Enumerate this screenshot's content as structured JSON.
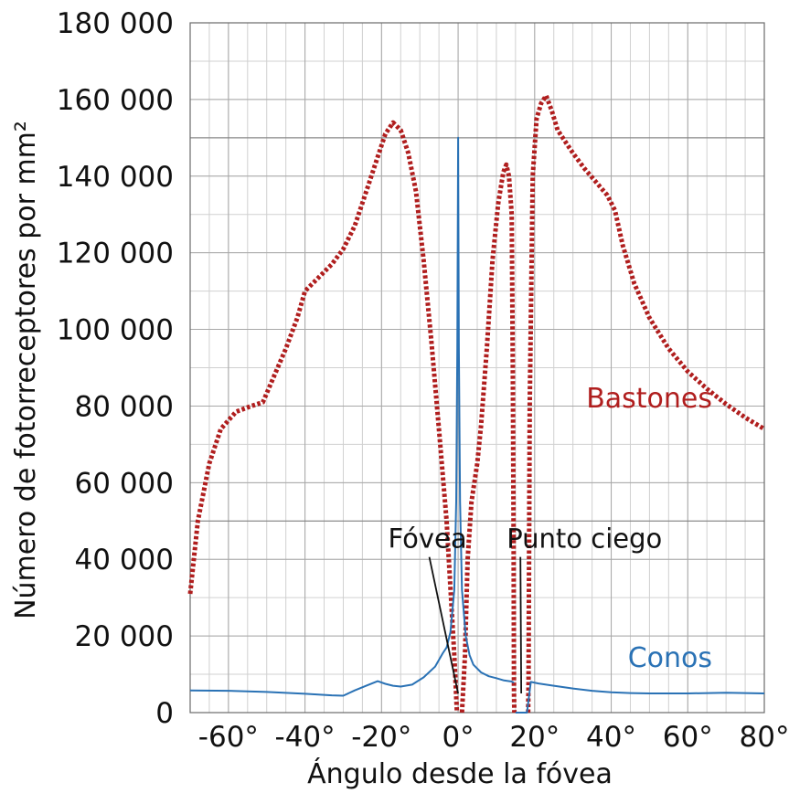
{
  "chart_data": {
    "type": "line",
    "xlabel": "Ángulo desde la fóvea",
    "ylabel": "Número de fotorreceptores por mm²",
    "xlim": [
      -70,
      80
    ],
    "ylim": [
      0,
      180000
    ],
    "x_ticks": [
      {
        "value": -60,
        "label": "-60°"
      },
      {
        "value": -40,
        "label": "-40°"
      },
      {
        "value": -20,
        "label": "-20°"
      },
      {
        "value": 0,
        "label": "0°"
      },
      {
        "value": 20,
        "label": "20°"
      },
      {
        "value": 40,
        "label": "40°"
      },
      {
        "value": 60,
        "label": "60°"
      },
      {
        "value": 80,
        "label": "80°"
      }
    ],
    "y_ticks": [
      {
        "value": 0,
        "label": "0"
      },
      {
        "value": 20000,
        "label": "20 000"
      },
      {
        "value": 40000,
        "label": "40 000"
      },
      {
        "value": 60000,
        "label": "60 000"
      },
      {
        "value": 80000,
        "label": "80 000"
      },
      {
        "value": 100000,
        "label": "100 000"
      },
      {
        "value": 120000,
        "label": "120 000"
      },
      {
        "value": 140000,
        "label": "140 000"
      },
      {
        "value": 160000,
        "label": "160 000"
      },
      {
        "value": 180000,
        "label": "180 000"
      }
    ],
    "grid": true,
    "series": [
      {
        "name": "Bastones",
        "color": "#b01e1e",
        "style": "dotted",
        "segments": [
          [
            [
              -70,
              31000
            ],
            [
              -68,
              50000
            ],
            [
              -65,
              65000
            ],
            [
              -62,
              74000
            ],
            [
              -58,
              78500
            ],
            [
              -54,
              80000
            ],
            [
              -51,
              81000
            ],
            [
              -48,
              88000
            ],
            [
              -45,
              95000
            ],
            [
              -42,
              103000
            ],
            [
              -40,
              110000
            ],
            [
              -37,
              113000
            ],
            [
              -33,
              117000
            ],
            [
              -30,
              121000
            ],
            [
              -27,
              127000
            ],
            [
              -24,
              136000
            ],
            [
              -21,
              145000
            ],
            [
              -19,
              151000
            ],
            [
              -17,
              154000
            ],
            [
              -15,
              152000
            ],
            [
              -13,
              146000
            ],
            [
              -11,
              136000
            ],
            [
              -9,
              118000
            ],
            [
              -7,
              97000
            ],
            [
              -5,
              74000
            ],
            [
              -3,
              50000
            ],
            [
              -1,
              15000
            ],
            [
              -0.3,
              0
            ]
          ],
          [
            [
              1,
              0
            ],
            [
              1.8,
              15000
            ],
            [
              2.5,
              40000
            ],
            [
              3.5,
              55000
            ],
            [
              5,
              65000
            ],
            [
              6,
              75000
            ],
            [
              7.5,
              95000
            ],
            [
              9,
              118000
            ],
            [
              10.5,
              133000
            ],
            [
              11.8,
              141000
            ],
            [
              12.6,
              143000
            ],
            [
              13.3,
              140000
            ],
            [
              14,
              130000
            ],
            [
              14.3,
              90000
            ],
            [
              14.5,
              45000
            ],
            [
              14.6,
              5000
            ],
            [
              14.7,
              0
            ]
          ],
          [
            [
              18.3,
              0
            ],
            [
              18.4,
              8000
            ],
            [
              18.7,
              80000
            ],
            [
              19.5,
              140000
            ],
            [
              20.5,
              155000
            ],
            [
              21.7,
              159000
            ],
            [
              23,
              161000
            ],
            [
              24.5,
              157000
            ],
            [
              26,
              152000
            ],
            [
              28,
              149000
            ],
            [
              30,
              146000
            ],
            [
              33,
              142000
            ],
            [
              36,
              138500
            ],
            [
              39,
              135000
            ],
            [
              41,
              131000
            ],
            [
              43,
              122000
            ],
            [
              46,
              112000
            ],
            [
              50,
              103000
            ],
            [
              55,
              95000
            ],
            [
              60,
              89000
            ],
            [
              65,
              84500
            ],
            [
              70,
              80500
            ],
            [
              75,
              77000
            ],
            [
              80,
              74000
            ]
          ]
        ]
      },
      {
        "name": "Conos",
        "color": "#2a72b5",
        "style": "solid",
        "segments": [
          [
            [
              -70,
              5800
            ],
            [
              -60,
              5700
            ],
            [
              -50,
              5400
            ],
            [
              -40,
              4900
            ],
            [
              -33,
              4500
            ],
            [
              -30,
              4400
            ],
            [
              -27,
              5800
            ],
            [
              -24,
              7000
            ],
            [
              -21,
              8200
            ],
            [
              -19,
              7500
            ],
            [
              -17,
              7000
            ],
            [
              -15,
              6800
            ],
            [
              -12,
              7300
            ],
            [
              -9,
              9200
            ],
            [
              -6,
              12000
            ],
            [
              -4,
              15500
            ],
            [
              -3,
              17000
            ],
            [
              -2,
              21000
            ],
            [
              -1,
              32000
            ],
            [
              -0.5,
              55000
            ],
            [
              -0.2,
              95000
            ],
            [
              0,
              150000
            ],
            [
              0.2,
              95000
            ],
            [
              0.5,
              55000
            ],
            [
              1,
              32000
            ],
            [
              2,
              20000
            ],
            [
              3,
              15000
            ],
            [
              4,
              12500
            ],
            [
              6,
              10500
            ],
            [
              8,
              9500
            ],
            [
              10,
              9000
            ],
            [
              12,
              8400
            ],
            [
              14,
              8100
            ],
            [
              14.6,
              7800
            ]
          ],
          [
            [
              15,
              0
            ],
            [
              18,
              0
            ],
            [
              19,
              8000
            ],
            [
              21,
              7600
            ],
            [
              25,
              7000
            ],
            [
              30,
              6300
            ],
            [
              35,
              5700
            ],
            [
              40,
              5300
            ],
            [
              45,
              5100
            ],
            [
              50,
              5000
            ],
            [
              60,
              5000
            ],
            [
              70,
              5200
            ],
            [
              80,
              5000
            ]
          ]
        ]
      }
    ],
    "annotations": [
      {
        "text": "Fóvea",
        "x": -8,
        "y": 43000,
        "target_x": 0,
        "target_y": 5000
      },
      {
        "text": "Punto ciego",
        "x": 33,
        "y": 43000,
        "target_x": 16.5,
        "target_y": 5000
      }
    ]
  }
}
